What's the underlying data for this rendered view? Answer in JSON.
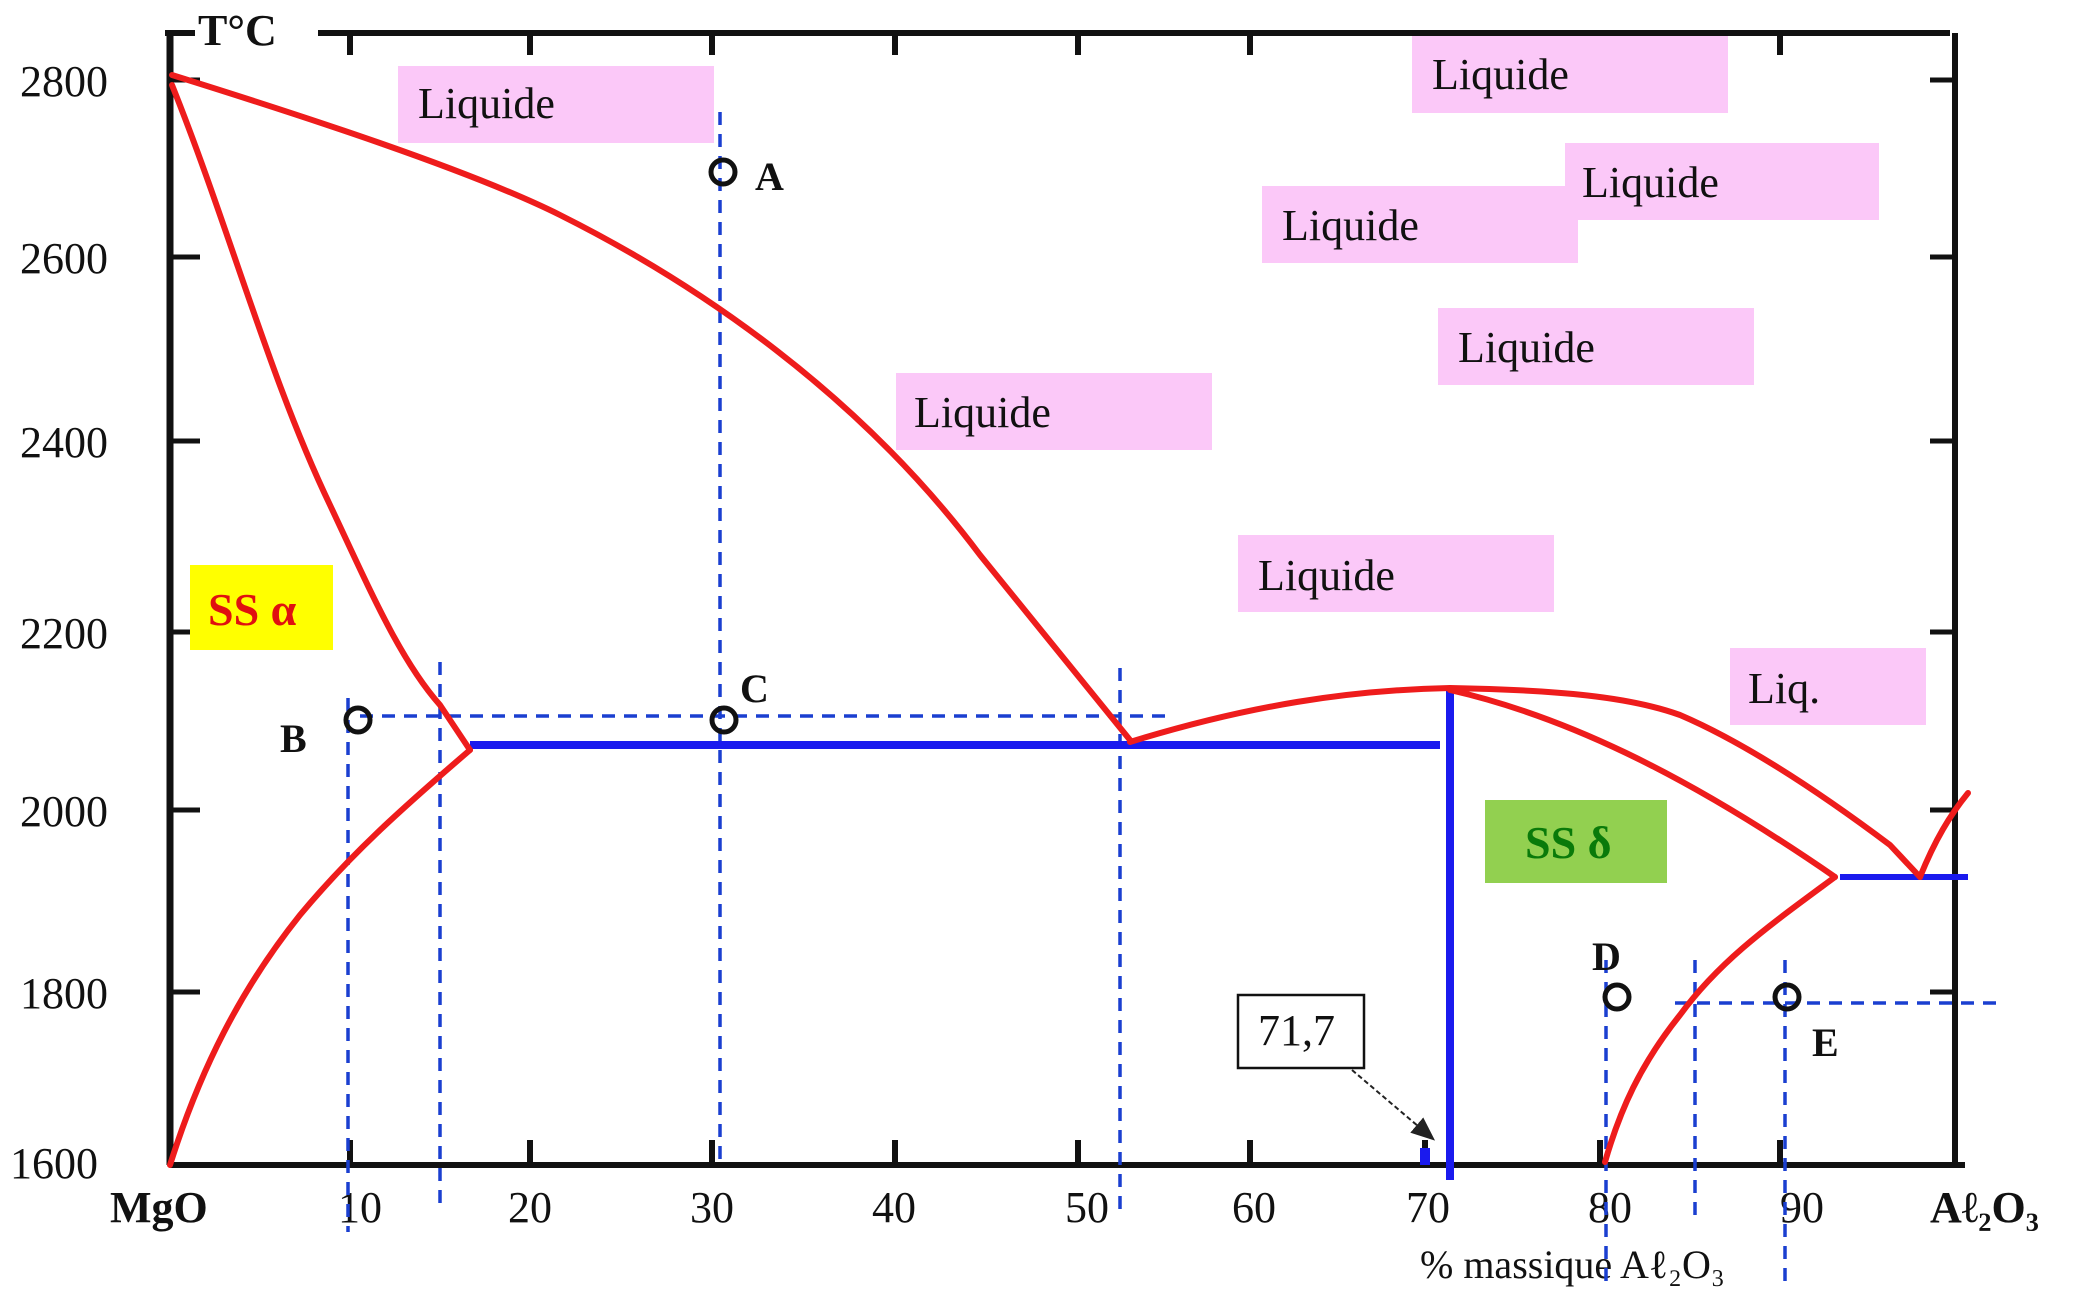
{
  "diagram": {
    "y_axis_title": "T°C",
    "x_axis_title": "% massique  Aℓ₂O₃",
    "x_start_label": "MgO",
    "x_end_label": "Aℓ₂O₃",
    "y_ticks": [
      {
        "value": 2800,
        "label": "2800"
      },
      {
        "value": 2600,
        "label": "2600"
      },
      {
        "value": 2400,
        "label": "2400"
      },
      {
        "value": 2200,
        "label": "2200"
      },
      {
        "value": 2000,
        "label": "2000"
      },
      {
        "value": 1800,
        "label": "1800"
      },
      {
        "value": 1600,
        "label": "1600"
      }
    ],
    "x_ticks": [
      {
        "value": 10,
        "label": "10"
      },
      {
        "value": 20,
        "label": "20"
      },
      {
        "value": 30,
        "label": "30"
      },
      {
        "value": 40,
        "label": "40"
      },
      {
        "value": 50,
        "label": "50"
      },
      {
        "value": 60,
        "label": "60"
      },
      {
        "value": 70,
        "label": "70"
      },
      {
        "value": 80,
        "label": "80"
      },
      {
        "value": 90,
        "label": "90"
      }
    ],
    "liquid_labels": [
      "Liquide",
      "Liquide",
      "Liquide",
      "Liquide",
      "Liquide",
      "Liquide",
      "Liquide",
      "Liq."
    ],
    "phase_regions": {
      "alpha": "SS α",
      "delta": "SS δ"
    },
    "callout_value": "71,7",
    "points": [
      {
        "id": "A",
        "label": "A",
        "x": 30.5,
        "t": 2700
      },
      {
        "id": "B",
        "label": "B",
        "x": 10,
        "t": 2095
      },
      {
        "id": "C",
        "label": "C",
        "x": 30.5,
        "t": 2095
      },
      {
        "id": "D",
        "label": "D",
        "x": 80.5,
        "t": 1795
      },
      {
        "id": "E",
        "label": "E",
        "x": 89.5,
        "t": 1795
      }
    ],
    "colors": {
      "curve": "#ee1c1c",
      "line": "#1a1aee",
      "guide": "#1a3fd0",
      "liquid_box": "#fbc8f8",
      "alpha_box": "#ffff00",
      "alpha_text": "#e01010",
      "delta_box": "#92d050",
      "delta_text": "#0a7a0a"
    }
  }
}
